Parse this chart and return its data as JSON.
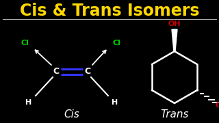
{
  "background_color": "#000000",
  "title": "Cis & Trans Isomers",
  "title_color": "#FFD700",
  "title_fontsize": 17,
  "cis_label": "Cis",
  "trans_label": "Trans",
  "label_color": "#FFFFFF",
  "label_fontsize": 11,
  "cl_color": "#00CC00",
  "oh_color": "#CC0000",
  "double_bond_color": "#3333FF",
  "atom_color": "#FFFFFF",
  "line_color": "#FFFFFF",
  "separator_color": "#AAAAAA"
}
